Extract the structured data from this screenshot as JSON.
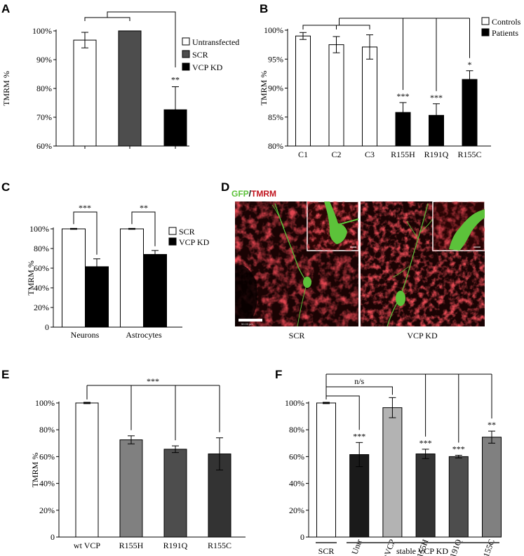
{
  "chart_data": [
    {
      "panel": "A",
      "type": "bar",
      "categories": [
        "",
        "",
        ""
      ],
      "series": [
        {
          "name": "Untransfected",
          "values": [
            96.8,
            null,
            null
          ],
          "errors": [
            2.7,
            null,
            null
          ],
          "color": "#ffffff"
        },
        {
          "name": "SCR",
          "values": [
            null,
            100,
            null
          ],
          "errors": [
            null,
            0,
            null
          ],
          "color": "#4d4d4d"
        },
        {
          "name": "VCP KD",
          "values": [
            null,
            null,
            72.6
          ],
          "errors": [
            null,
            null,
            8.0
          ],
          "color": "#000000"
        }
      ],
      "ylabel": "TMRM %",
      "ylim": [
        60,
        100
      ],
      "yticks": [
        "60%",
        "70%",
        "80%",
        "90%",
        "100%"
      ],
      "significance": [
        "",
        "",
        "**"
      ],
      "legend": "right"
    },
    {
      "panel": "B",
      "type": "bar",
      "categories": [
        "C1",
        "C2",
        "C3",
        "R155H",
        "R191Q",
        "R155C"
      ],
      "values": [
        99.0,
        97.5,
        97.1,
        85.8,
        85.3,
        91.5
      ],
      "errors": [
        0.6,
        1.4,
        2.1,
        1.7,
        2.0,
        1.5
      ],
      "colors": [
        "#ffffff",
        "#ffffff",
        "#ffffff",
        "#000000",
        "#000000",
        "#000000"
      ],
      "legend_entries": [
        {
          "name": "Controls",
          "color": "#ffffff"
        },
        {
          "name": "Patients",
          "color": "#000000"
        }
      ],
      "ylabel": "TMRM %",
      "ylim": [
        80,
        100
      ],
      "yticks": [
        "80%",
        "85%",
        "90%",
        "95%",
        "100%"
      ],
      "significance": [
        "",
        "",
        "",
        "***",
        "***",
        "*"
      ],
      "legend": "top-right"
    },
    {
      "panel": "C",
      "type": "bar",
      "categories": [
        "Neurons",
        "Astrocytes"
      ],
      "series": [
        {
          "name": "SCR",
          "values": [
            100,
            100
          ],
          "errors": [
            0.5,
            0.5
          ],
          "color": "#ffffff"
        },
        {
          "name": "VCP KD",
          "values": [
            61.5,
            74
          ],
          "errors": [
            8,
            4
          ],
          "color": "#000000"
        }
      ],
      "ylabel": "TMRM %",
      "ylim": [
        0,
        100
      ],
      "yticks": [
        "0",
        "20%",
        "40%",
        "60%",
        "80%",
        "100%"
      ],
      "significance": [
        "***",
        "**"
      ],
      "legend": "right"
    },
    {
      "panel": "E",
      "type": "bar",
      "categories": [
        "wt VCP",
        "R155H",
        "R191Q",
        "R155C"
      ],
      "values": [
        100,
        72.5,
        65.5,
        62
      ],
      "errors": [
        0.5,
        3,
        2.5,
        12
      ],
      "colors": [
        "#ffffff",
        "#808080",
        "#4d4d4d",
        "#333333"
      ],
      "ylabel": "TMRM %",
      "ylim": [
        0,
        100
      ],
      "yticks": [
        "0",
        "20%",
        "40%",
        "60%",
        "80%",
        "100%"
      ],
      "significance_top": "***"
    },
    {
      "panel": "F",
      "type": "bar",
      "categories": [
        "",
        "Untr",
        "wtVCP",
        "R155H",
        "R191Q",
        "R155C"
      ],
      "values": [
        100,
        61.5,
        96.5,
        62,
        60,
        74.5
      ],
      "errors": [
        0.5,
        9,
        7.5,
        3.5,
        1,
        4.5
      ],
      "colors": [
        "#ffffff",
        "#1a1a1a",
        "#b3b3b3",
        "#333333",
        "#4d4d4d",
        "#808080"
      ],
      "ylabel": "",
      "ylim": [
        0,
        100
      ],
      "yticks": [
        "0",
        "20%",
        "40%",
        "60%",
        "80%",
        "100%"
      ],
      "significance": [
        "",
        "***",
        "",
        "***",
        "***",
        "**"
      ],
      "bracket_label": "n/s",
      "groups": [
        "SCR",
        "stable VCP KD"
      ]
    }
  ],
  "panel_d": {
    "label": "D",
    "title_gfp": "GFP",
    "title_sep": "/",
    "title_tmrm": "TMRM",
    "left_caption": "SCR",
    "right_caption": "VCP KD",
    "scale_text": "50.00 µm"
  },
  "panel_labels": [
    "A",
    "B",
    "C",
    "E",
    "F"
  ],
  "colors": {
    "gfp": "#5cc23a",
    "tmrm": "#c0141e",
    "bg_micro": "#1a0303"
  }
}
